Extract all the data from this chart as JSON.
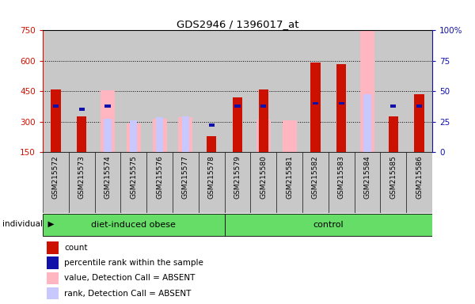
{
  "title": "GDS2946 / 1396017_at",
  "samples": [
    "GSM215572",
    "GSM215573",
    "GSM215574",
    "GSM215575",
    "GSM215576",
    "GSM215577",
    "GSM215578",
    "GSM215579",
    "GSM215580",
    "GSM215581",
    "GSM215582",
    "GSM215583",
    "GSM215584",
    "GSM215585",
    "GSM215586"
  ],
  "groups": {
    "diet-induced obese": [
      0,
      1,
      2,
      3,
      4,
      5,
      6
    ],
    "control": [
      7,
      8,
      9,
      10,
      11,
      12,
      13,
      14
    ]
  },
  "count": [
    460,
    325,
    null,
    null,
    null,
    null,
    230,
    420,
    460,
    null,
    590,
    585,
    null,
    325,
    435
  ],
  "percentile_rank": [
    38,
    35,
    38,
    null,
    null,
    null,
    22,
    38,
    38,
    null,
    40,
    40,
    null,
    38,
    38
  ],
  "absent_value": [
    null,
    null,
    455,
    290,
    315,
    320,
    null,
    null,
    310,
    305,
    null,
    null,
    750,
    null,
    null
  ],
  "absent_rank": [
    null,
    null,
    315,
    305,
    320,
    325,
    null,
    null,
    null,
    null,
    null,
    435,
    435,
    null,
    325
  ],
  "baseline": 150,
  "ylim_left": [
    150,
    750
  ],
  "ylim_right": [
    0,
    100
  ],
  "yticks_left": [
    150,
    300,
    450,
    600,
    750
  ],
  "yticks_right": [
    0,
    25,
    50,
    75,
    100
  ],
  "count_color": "#CC1100",
  "percentile_color": "#1111AA",
  "absent_value_color": "#FFB6C1",
  "absent_rank_color": "#C8C8FF",
  "bar_bg_color": "#C8C8C8",
  "group_color": "#66DD66",
  "grid_color": "#000000"
}
